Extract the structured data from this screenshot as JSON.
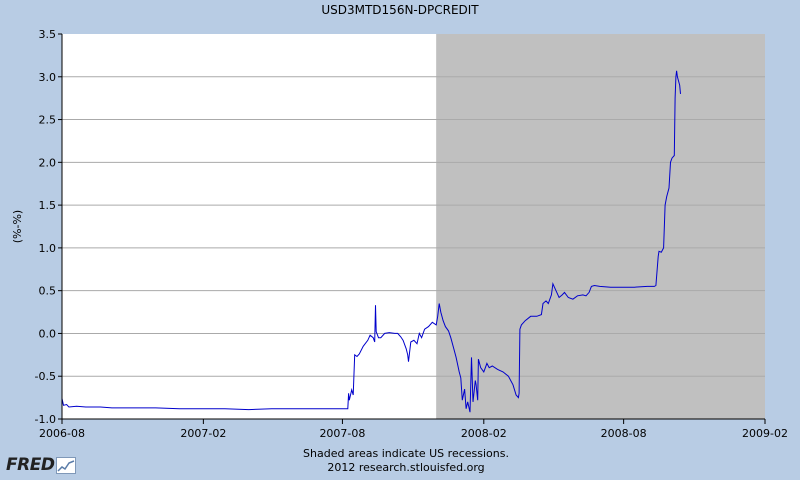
{
  "chart_data": {
    "type": "line",
    "title": "USD3MTD156N-DPCREDIT",
    "ylabel": "(%-%)",
    "xlabel": "",
    "ylim": [
      -1.0,
      3.5
    ],
    "yticks": [
      "3.5",
      "3.0",
      "2.5",
      "2.0",
      "1.5",
      "1.0",
      "0.5",
      "0.0",
      "-0.5",
      "-1.0"
    ],
    "xticks": [
      "2006-08",
      "2007-02",
      "2007-08",
      "2008-02",
      "2008-08",
      "2009-02"
    ],
    "xlim": [
      "2006-08-01",
      "2009-02-01"
    ],
    "recession": {
      "start": "2007-12-01",
      "end": "2009-02-01",
      "color": "#c0c0c0"
    },
    "grid": true,
    "line_color": "#0000cc",
    "series": [
      {
        "values": [
          [
            "2006-08-01",
            -0.76
          ],
          [
            "2006-08-03",
            -0.84
          ],
          [
            "2006-08-07",
            -0.83
          ],
          [
            "2006-08-10",
            -0.86
          ],
          [
            "2006-08-20",
            -0.85
          ],
          [
            "2006-09-01",
            -0.86
          ],
          [
            "2006-09-20",
            -0.86
          ],
          [
            "2006-10-05",
            -0.87
          ],
          [
            "2006-11-01",
            -0.87
          ],
          [
            "2006-12-01",
            -0.87
          ],
          [
            "2007-01-01",
            -0.88
          ],
          [
            "2007-02-01",
            -0.88
          ],
          [
            "2007-03-01",
            -0.88
          ],
          [
            "2007-04-01",
            -0.89
          ],
          [
            "2007-05-01",
            -0.88
          ],
          [
            "2007-06-01",
            -0.88
          ],
          [
            "2007-07-01",
            -0.88
          ],
          [
            "2007-08-01",
            -0.88
          ],
          [
            "2007-08-08",
            -0.88
          ],
          [
            "2007-08-09",
            -0.7
          ],
          [
            "2007-08-10",
            -0.78
          ],
          [
            "2007-08-13",
            -0.66
          ],
          [
            "2007-08-15",
            -0.72
          ],
          [
            "2007-08-17",
            -0.25
          ],
          [
            "2007-08-20",
            -0.27
          ],
          [
            "2007-08-23",
            -0.24
          ],
          [
            "2007-08-28",
            -0.15
          ],
          [
            "2007-09-03",
            -0.08
          ],
          [
            "2007-09-06",
            -0.02
          ],
          [
            "2007-09-10",
            -0.05
          ],
          [
            "2007-09-12",
            -0.1
          ],
          [
            "2007-09-13",
            0.33
          ],
          [
            "2007-09-14",
            0.02
          ],
          [
            "2007-09-17",
            -0.05
          ],
          [
            "2007-09-20",
            -0.05
          ],
          [
            "2007-09-25",
            0.0
          ],
          [
            "2007-10-01",
            0.01
          ],
          [
            "2007-10-08",
            0.0
          ],
          [
            "2007-10-12",
            0.0
          ],
          [
            "2007-10-16",
            -0.04
          ],
          [
            "2007-10-19",
            -0.08
          ],
          [
            "2007-10-23",
            -0.18
          ],
          [
            "2007-10-25",
            -0.25
          ],
          [
            "2007-10-26",
            -0.33
          ],
          [
            "2007-10-29",
            -0.1
          ],
          [
            "2007-11-02",
            -0.08
          ],
          [
            "2007-11-06",
            -0.12
          ],
          [
            "2007-11-09",
            0.0
          ],
          [
            "2007-11-12",
            -0.05
          ],
          [
            "2007-11-16",
            0.05
          ],
          [
            "2007-11-21",
            0.08
          ],
          [
            "2007-11-26",
            0.13
          ],
          [
            "2007-12-01",
            0.1
          ],
          [
            "2007-12-03",
            0.2
          ],
          [
            "2007-12-05",
            0.35
          ],
          [
            "2007-12-07",
            0.25
          ],
          [
            "2007-12-10",
            0.15
          ],
          [
            "2007-12-13",
            0.08
          ],
          [
            "2007-12-17",
            0.03
          ],
          [
            "2007-12-20",
            -0.05
          ],
          [
            "2007-12-24",
            -0.18
          ],
          [
            "2007-12-27",
            -0.28
          ],
          [
            "2007-12-31",
            -0.45
          ],
          [
            "2008-01-02",
            -0.52
          ],
          [
            "2008-01-04",
            -0.78
          ],
          [
            "2008-01-07",
            -0.65
          ],
          [
            "2008-01-09",
            -0.88
          ],
          [
            "2008-01-11",
            -0.8
          ],
          [
            "2008-01-14",
            -0.92
          ],
          [
            "2008-01-16",
            -0.28
          ],
          [
            "2008-01-18",
            -0.8
          ],
          [
            "2008-01-21",
            -0.55
          ],
          [
            "2008-01-22",
            -0.6
          ],
          [
            "2008-01-24",
            -0.78
          ],
          [
            "2008-01-25",
            -0.3
          ],
          [
            "2008-01-28",
            -0.4
          ],
          [
            "2008-02-01",
            -0.45
          ],
          [
            "2008-02-05",
            -0.35
          ],
          [
            "2008-02-08",
            -0.4
          ],
          [
            "2008-02-12",
            -0.38
          ],
          [
            "2008-02-19",
            -0.42
          ],
          [
            "2008-02-26",
            -0.45
          ],
          [
            "2008-03-04",
            -0.5
          ],
          [
            "2008-03-10",
            -0.6
          ],
          [
            "2008-03-14",
            -0.72
          ],
          [
            "2008-03-17",
            -0.75
          ],
          [
            "2008-03-18",
            -0.7
          ],
          [
            "2008-03-19",
            0.05
          ],
          [
            "2008-03-21",
            0.1
          ],
          [
            "2008-03-26",
            0.15
          ],
          [
            "2008-04-02",
            0.2
          ],
          [
            "2008-04-10",
            0.2
          ],
          [
            "2008-04-16",
            0.22
          ],
          [
            "2008-04-18",
            0.35
          ],
          [
            "2008-04-22",
            0.38
          ],
          [
            "2008-04-25",
            0.35
          ],
          [
            "2008-04-29",
            0.45
          ],
          [
            "2008-05-01",
            0.58
          ],
          [
            "2008-05-05",
            0.5
          ],
          [
            "2008-05-09",
            0.42
          ],
          [
            "2008-05-13",
            0.45
          ],
          [
            "2008-05-16",
            0.48
          ],
          [
            "2008-05-21",
            0.42
          ],
          [
            "2008-05-27",
            0.4
          ],
          [
            "2008-06-02",
            0.44
          ],
          [
            "2008-06-09",
            0.45
          ],
          [
            "2008-06-13",
            0.44
          ],
          [
            "2008-06-17",
            0.48
          ],
          [
            "2008-06-20",
            0.55
          ],
          [
            "2008-06-24",
            0.56
          ],
          [
            "2008-07-01",
            0.55
          ],
          [
            "2008-07-15",
            0.54
          ],
          [
            "2008-08-01",
            0.54
          ],
          [
            "2008-08-15",
            0.54
          ],
          [
            "2008-09-01",
            0.55
          ],
          [
            "2008-09-10",
            0.55
          ],
          [
            "2008-09-12",
            0.56
          ],
          [
            "2008-09-15",
            0.9
          ],
          [
            "2008-09-16",
            0.96
          ],
          [
            "2008-09-19",
            0.95
          ],
          [
            "2008-09-22",
            1.0
          ],
          [
            "2008-09-24",
            1.5
          ],
          [
            "2008-09-26",
            1.6
          ],
          [
            "2008-09-29",
            1.7
          ],
          [
            "2008-10-01",
            2.0
          ],
          [
            "2008-10-03",
            2.05
          ],
          [
            "2008-10-06",
            2.08
          ],
          [
            "2008-10-07",
            2.75
          ],
          [
            "2008-10-08",
            3.0
          ],
          [
            "2008-10-09",
            3.07
          ],
          [
            "2008-10-10",
            3.0
          ],
          [
            "2008-10-13",
            2.9
          ],
          [
            "2008-10-14",
            2.8
          ]
        ]
      }
    ]
  },
  "footer": {
    "note_line1": "Shaded areas indicate US recessions.",
    "note_line2": "2012 research.stlouisfed.org",
    "logo_text": "FRED"
  }
}
